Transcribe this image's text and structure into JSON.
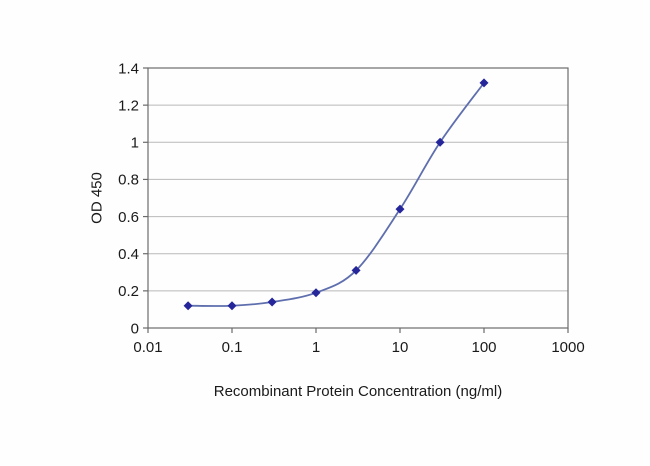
{
  "chart_data": {
    "type": "line",
    "x_scale": "log",
    "x": [
      0.03,
      0.1,
      0.3,
      1,
      3,
      10,
      30,
      100
    ],
    "y": [
      0.12,
      0.12,
      0.14,
      0.19,
      0.31,
      0.64,
      1.0,
      1.32
    ],
    "xlabel": "Recombinant Protein Concentration (ng/ml)",
    "ylabel": "OD 450",
    "xlim": [
      0.01,
      1000
    ],
    "ylim": [
      0,
      1.4
    ],
    "x_ticks": [
      0.01,
      0.1,
      1,
      10,
      100,
      1000
    ],
    "x_tick_labels": [
      "0.01",
      "0.1",
      "1",
      "10",
      "100",
      "1000"
    ],
    "y_ticks": [
      0,
      0.2,
      0.4,
      0.6,
      0.8,
      1,
      1.2,
      1.4
    ],
    "y_tick_labels": [
      "0",
      "0.2",
      "0.4",
      "0.6",
      "0.8",
      "1",
      "1.2",
      "1.4"
    ],
    "grid": "horizontal",
    "legend": "none",
    "marker": "diamond",
    "colors": {
      "line": "#5f6fae",
      "marker": "#26269b",
      "grid": "#b9b9b9",
      "axis": "#6b6b6b",
      "text": "#1a1a1a"
    }
  }
}
